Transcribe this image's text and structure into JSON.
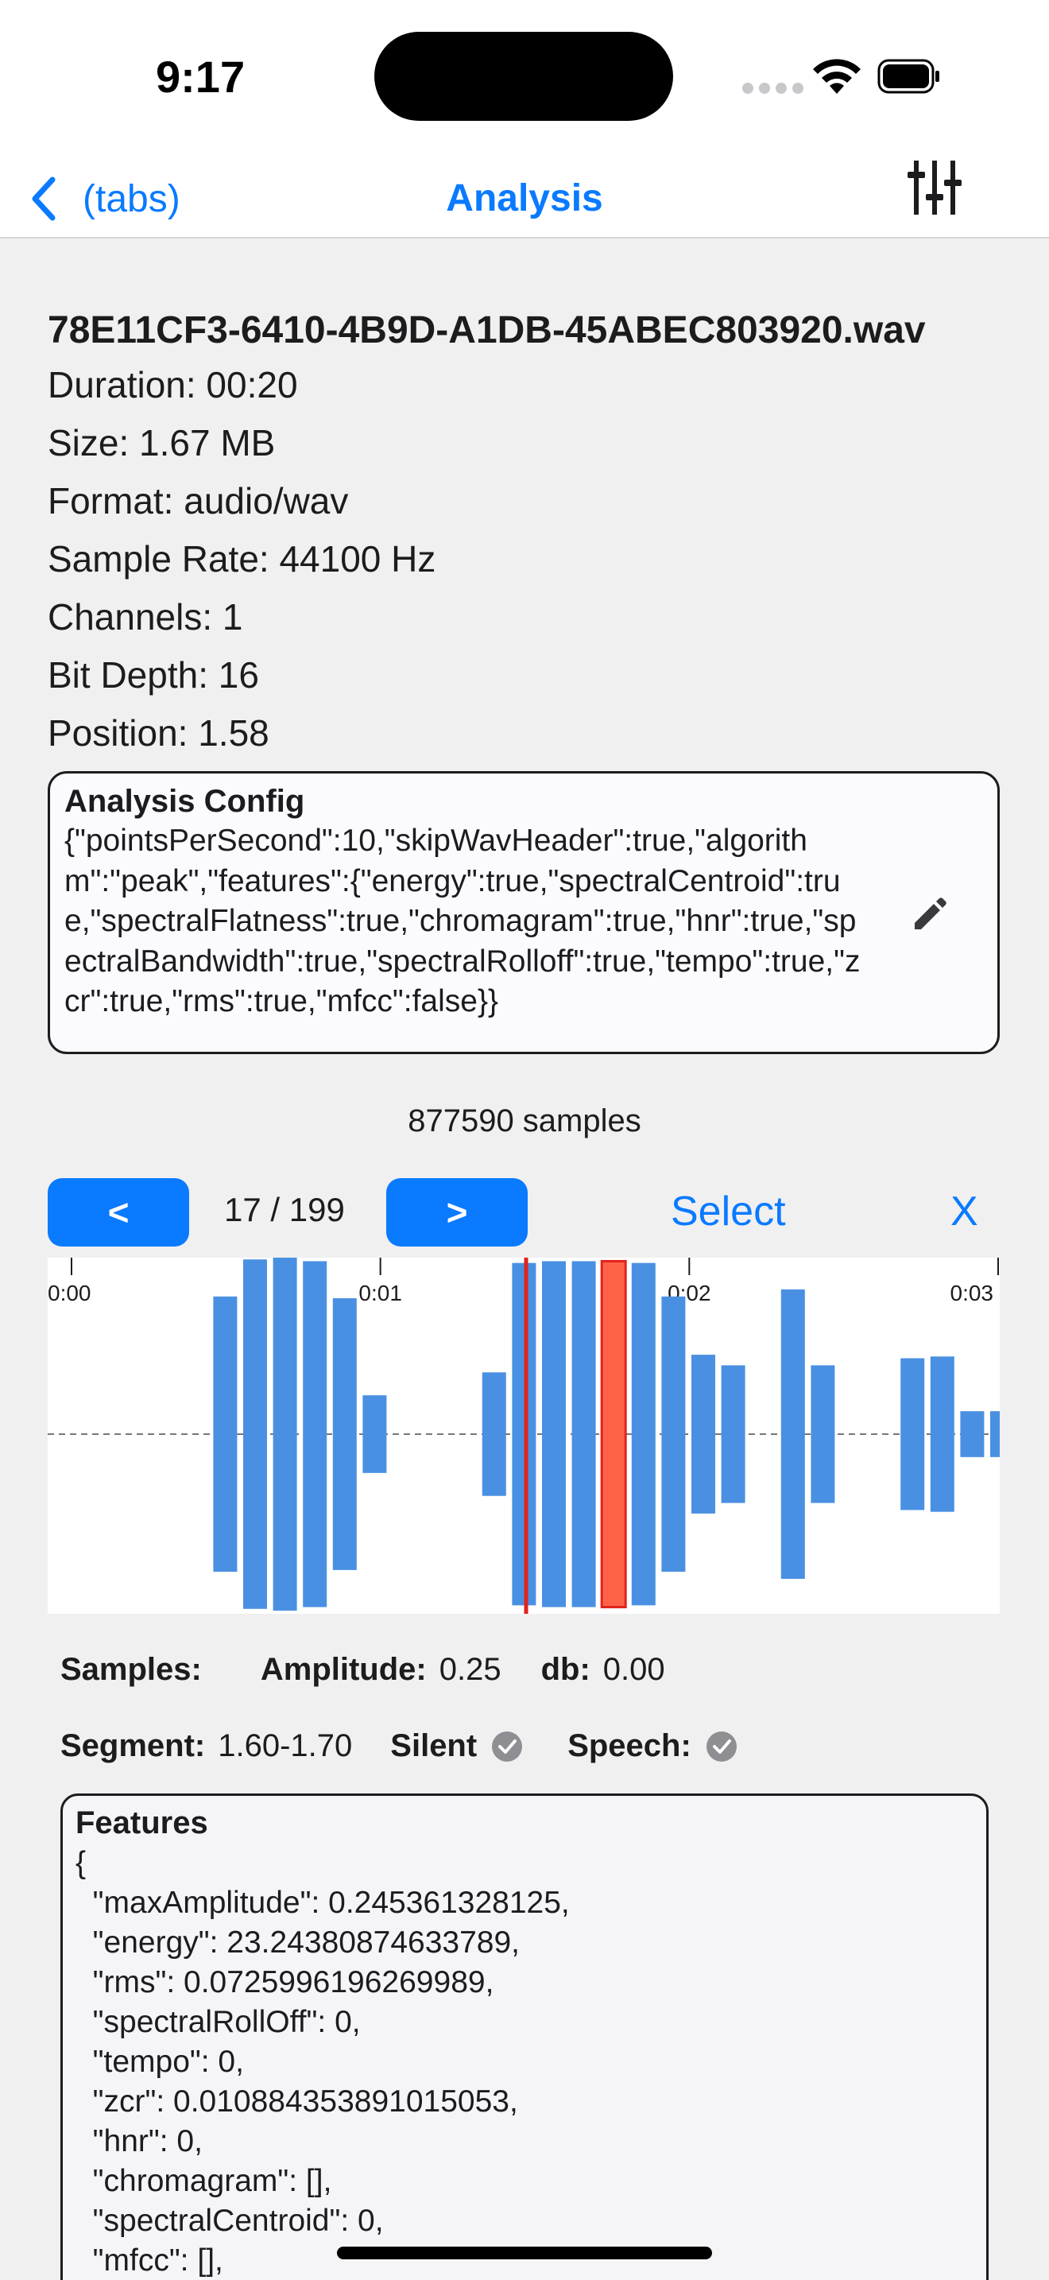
{
  "status_bar": {
    "time": "9:17"
  },
  "nav": {
    "back_label": "(tabs)",
    "title": "Analysis"
  },
  "file": {
    "name": "78E11CF3-6410-4B9D-A1DB-45ABEC803920.wav",
    "lines": [
      "Duration: 00:20",
      "Size: 1.67 MB",
      "Format: audio/wav",
      "Sample Rate: 44100 Hz",
      "Channels: 1",
      "Bit Depth: 16",
      "Position: 1.58"
    ]
  },
  "config": {
    "title": "Analysis Config",
    "json": "{\"pointsPerSecond\":10,\"skipWavHeader\":true,\"algorithm\":\"peak\",\"features\":{\"energy\":true,\"spectralCentroid\":true,\"spectralFlatness\":true,\"chromagram\":true,\"hnr\":true,\"spectralBandwidth\":true,\"spectralRolloff\":true,\"tempo\":true,\"zcr\":true,\"rms\":true,\"mfcc\":false}}"
  },
  "samples_count": "877590 samples",
  "controls": {
    "prev_label": "<",
    "page": "17 / 199",
    "next_label": ">",
    "select_label": "Select",
    "close_label": "X"
  },
  "waveform": {
    "time_labels": [
      "0:00",
      "0:01",
      "0:02",
      "0:03"
    ],
    "bar_color": "#4a90e2",
    "selected_color": "#ff6347",
    "selected_index": 17,
    "amplitudes": [
      0,
      0,
      0,
      0,
      0.78,
      0.99,
      1.0,
      0.98,
      0.77,
      0.22,
      0,
      0,
      0,
      0.35,
      0.97,
      0.98,
      0.98,
      0.98,
      0.97,
      0.78,
      0.45,
      0.39,
      0,
      0.82,
      0.39,
      0,
      0,
      0.43,
      0.44,
      0.13,
      0.13,
      0
    ]
  },
  "stats": {
    "samples_label": "Samples:",
    "amplitude_label": "Amplitude:",
    "amplitude_value": "0.25",
    "db_label": "db:",
    "db_value": "0.00",
    "segment_label": "Segment:",
    "segment_value": "1.60-1.70",
    "silent_label": "Silent",
    "speech_label": "Speech:"
  },
  "features": {
    "title": "Features",
    "lines": [
      "{",
      "  \"maxAmplitude\": 0.245361328125,",
      "  \"energy\": 23.24380874633789,",
      "  \"rms\": 0.0725996196269989,",
      "  \"spectralRollOff\": 0,",
      "  \"tempo\": 0,",
      "  \"zcr\": 0.010884353891015053,",
      "  \"hnr\": 0,",
      "  \"chromagram\": [],",
      "  \"spectralCentroid\": 0,",
      "  \"mfcc\": [],"
    ]
  },
  "colors": {
    "accent": "#0a7aff",
    "background": "#f0f0f0"
  }
}
